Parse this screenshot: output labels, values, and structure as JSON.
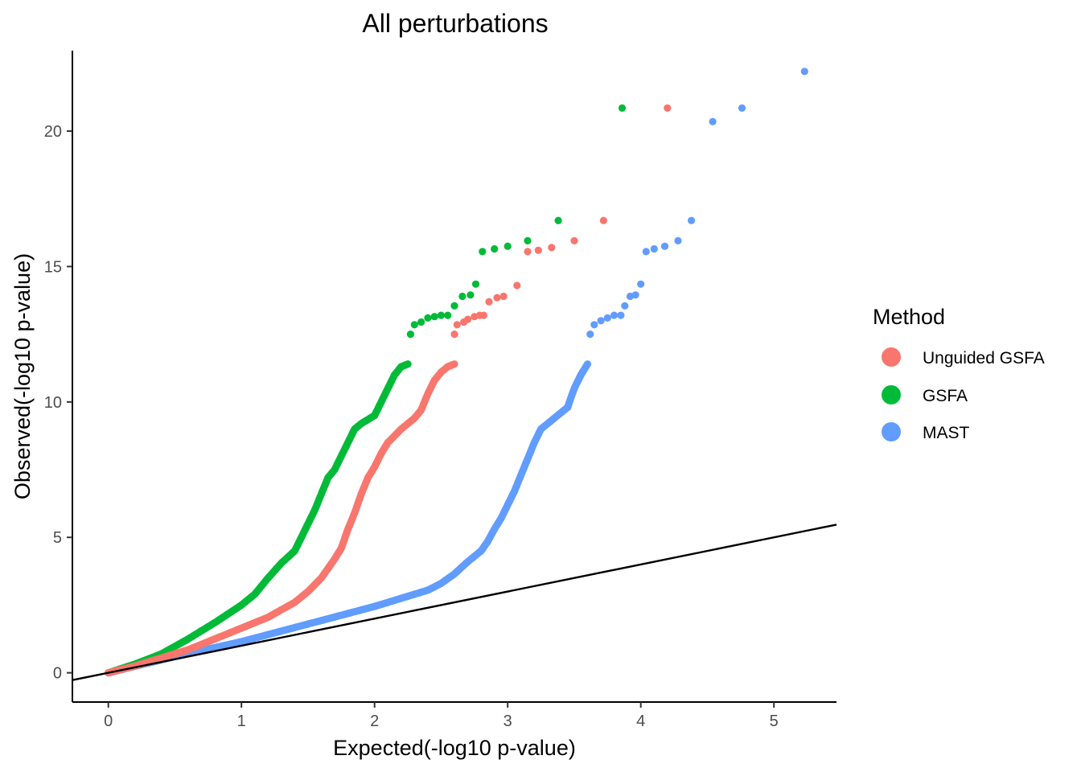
{
  "chart_data": {
    "type": "scatter",
    "title": "All perturbations",
    "xlabel": "Expected(-log10 p-value)",
    "ylabel": "Observed(-log10 p-value)",
    "xlim": [
      -0.27,
      5.47
    ],
    "ylim": [
      -1.08,
      22.97
    ],
    "x_ticks": [
      0,
      1,
      2,
      3,
      4,
      5
    ],
    "y_ticks": [
      0,
      5,
      10,
      15,
      20
    ],
    "grid": false,
    "reference_line": {
      "slope": 1,
      "intercept": 0,
      "color": "#000000"
    },
    "legend": {
      "title": "Method",
      "position": "right"
    },
    "series": [
      {
        "name": "Unguided GSFA",
        "color": "#F8766D",
        "curve": [
          [
            0,
            0
          ],
          [
            0.2,
            0.25
          ],
          [
            0.4,
            0.55
          ],
          [
            0.6,
            0.85
          ],
          [
            0.8,
            1.25
          ],
          [
            1.0,
            1.65
          ],
          [
            1.2,
            2.05
          ],
          [
            1.4,
            2.6
          ],
          [
            1.5,
            3.0
          ],
          [
            1.6,
            3.5
          ],
          [
            1.7,
            4.2
          ],
          [
            1.75,
            4.6
          ],
          [
            1.8,
            5.3
          ],
          [
            1.85,
            5.9
          ],
          [
            1.9,
            6.6
          ],
          [
            1.95,
            7.2
          ],
          [
            2.0,
            7.6
          ],
          [
            2.05,
            8.1
          ],
          [
            2.1,
            8.5
          ],
          [
            2.2,
            9.0
          ],
          [
            2.3,
            9.4
          ],
          [
            2.35,
            9.7
          ],
          [
            2.4,
            10.3
          ],
          [
            2.45,
            10.8
          ],
          [
            2.5,
            11.1
          ],
          [
            2.55,
            11.3
          ],
          [
            2.6,
            11.4
          ]
        ],
        "tail": [
          [
            2.6,
            12.5
          ],
          [
            2.62,
            12.85
          ],
          [
            2.67,
            12.95
          ],
          [
            2.7,
            13.05
          ],
          [
            2.75,
            13.15
          ],
          [
            2.79,
            13.2
          ],
          [
            2.82,
            13.2
          ],
          [
            2.86,
            13.7
          ],
          [
            2.92,
            13.85
          ],
          [
            2.97,
            13.9
          ],
          [
            3.07,
            14.3
          ],
          [
            3.15,
            15.55
          ],
          [
            3.23,
            15.6
          ],
          [
            3.33,
            15.7
          ],
          [
            3.5,
            15.95
          ],
          [
            3.72,
            16.7
          ],
          [
            4.2,
            20.85
          ]
        ]
      },
      {
        "name": "GSFA",
        "color": "#00BA38",
        "curve": [
          [
            0,
            0
          ],
          [
            0.2,
            0.32
          ],
          [
            0.4,
            0.7
          ],
          [
            0.6,
            1.25
          ],
          [
            0.8,
            1.85
          ],
          [
            1.0,
            2.5
          ],
          [
            1.1,
            2.9
          ],
          [
            1.2,
            3.5
          ],
          [
            1.3,
            4.05
          ],
          [
            1.4,
            4.5
          ],
          [
            1.5,
            5.5
          ],
          [
            1.55,
            6.0
          ],
          [
            1.6,
            6.6
          ],
          [
            1.65,
            7.2
          ],
          [
            1.7,
            7.5
          ],
          [
            1.75,
            8.0
          ],
          [
            1.8,
            8.5
          ],
          [
            1.85,
            9.0
          ],
          [
            1.9,
            9.2
          ],
          [
            2.0,
            9.5
          ],
          [
            2.05,
            10.0
          ],
          [
            2.1,
            10.5
          ],
          [
            2.15,
            11.0
          ],
          [
            2.2,
            11.3
          ],
          [
            2.25,
            11.4
          ]
        ],
        "tail": [
          [
            2.27,
            12.5
          ],
          [
            2.3,
            12.85
          ],
          [
            2.35,
            12.95
          ],
          [
            2.4,
            13.1
          ],
          [
            2.45,
            13.15
          ],
          [
            2.5,
            13.2
          ],
          [
            2.55,
            13.2
          ],
          [
            2.6,
            13.55
          ],
          [
            2.66,
            13.9
          ],
          [
            2.72,
            13.95
          ],
          [
            2.76,
            14.35
          ],
          [
            2.81,
            15.55
          ],
          [
            2.9,
            15.65
          ],
          [
            3.0,
            15.75
          ],
          [
            3.15,
            15.95
          ],
          [
            3.38,
            16.7
          ],
          [
            3.86,
            20.85
          ]
        ]
      },
      {
        "name": "MAST",
        "color": "#619CFF",
        "curve": [
          [
            0,
            0
          ],
          [
            0.5,
            0.6
          ],
          [
            1.0,
            1.15
          ],
          [
            1.5,
            1.8
          ],
          [
            2.0,
            2.45
          ],
          [
            2.2,
            2.75
          ],
          [
            2.4,
            3.05
          ],
          [
            2.5,
            3.3
          ],
          [
            2.6,
            3.65
          ],
          [
            2.7,
            4.1
          ],
          [
            2.8,
            4.5
          ],
          [
            2.85,
            4.85
          ],
          [
            2.9,
            5.3
          ],
          [
            2.95,
            5.7
          ],
          [
            3.0,
            6.2
          ],
          [
            3.05,
            6.7
          ],
          [
            3.1,
            7.3
          ],
          [
            3.15,
            7.9
          ],
          [
            3.2,
            8.5
          ],
          [
            3.25,
            9.0
          ],
          [
            3.35,
            9.4
          ],
          [
            3.45,
            9.8
          ],
          [
            3.5,
            10.5
          ],
          [
            3.55,
            11.0
          ],
          [
            3.6,
            11.4
          ]
        ],
        "tail": [
          [
            3.62,
            12.5
          ],
          [
            3.65,
            12.85
          ],
          [
            3.7,
            13.0
          ],
          [
            3.75,
            13.1
          ],
          [
            3.8,
            13.2
          ],
          [
            3.85,
            13.2
          ],
          [
            3.88,
            13.55
          ],
          [
            3.92,
            13.9
          ],
          [
            3.96,
            13.95
          ],
          [
            4.0,
            14.35
          ],
          [
            4.04,
            15.55
          ],
          [
            4.1,
            15.65
          ],
          [
            4.18,
            15.75
          ],
          [
            4.28,
            15.95
          ],
          [
            4.38,
            16.7
          ],
          [
            4.54,
            20.35
          ],
          [
            4.76,
            20.85
          ],
          [
            5.23,
            22.2
          ]
        ]
      }
    ]
  }
}
